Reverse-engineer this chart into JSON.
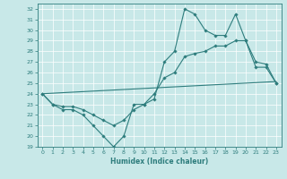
{
  "title": "",
  "xlabel": "Humidex (Indice chaleur)",
  "xlim": [
    -0.5,
    23.5
  ],
  "ylim": [
    19,
    32.5
  ],
  "yticks": [
    19,
    20,
    21,
    22,
    23,
    24,
    25,
    26,
    27,
    28,
    29,
    30,
    31,
    32
  ],
  "xticks": [
    0,
    1,
    2,
    3,
    4,
    5,
    6,
    7,
    8,
    9,
    10,
    11,
    12,
    13,
    14,
    15,
    16,
    17,
    18,
    19,
    20,
    21,
    22,
    23
  ],
  "bg_color": "#c8e8e8",
  "line_color": "#2e7d7d",
  "line1_x": [
    0,
    1,
    2,
    3,
    4,
    5,
    6,
    7,
    8,
    9,
    10,
    11,
    12,
    13,
    14,
    15,
    16,
    17,
    18,
    19,
    20,
    21,
    22,
    23
  ],
  "line1_y": [
    24,
    23,
    22.5,
    22.5,
    22,
    21,
    20,
    19,
    20,
    23,
    23,
    23.5,
    27,
    28,
    32,
    31.5,
    30,
    29.5,
    29.5,
    31.5,
    29,
    26.5,
    26.5,
    25
  ],
  "line2_x": [
    0,
    1,
    2,
    3,
    4,
    5,
    6,
    7,
    8,
    9,
    10,
    11,
    12,
    13,
    14,
    15,
    16,
    17,
    18,
    19,
    20,
    21,
    22,
    23
  ],
  "line2_y": [
    24,
    23,
    22.8,
    22.8,
    22.5,
    22,
    21.5,
    21,
    21.5,
    22.5,
    23,
    24,
    25.5,
    26,
    27.5,
    27.8,
    28,
    28.5,
    28.5,
    29,
    29,
    27,
    26.8,
    25
  ],
  "line3_x": [
    0,
    1,
    2,
    3,
    4,
    5,
    6,
    7,
    8,
    9,
    10,
    11,
    12,
    13,
    14,
    15,
    16,
    17,
    18,
    19,
    20,
    21,
    22,
    23
  ],
  "line3_y": [
    24,
    24.05,
    24.1,
    24.15,
    24.2,
    24.25,
    24.3,
    24.35,
    24.4,
    24.45,
    24.5,
    24.55,
    24.6,
    24.65,
    24.7,
    24.75,
    24.8,
    24.85,
    24.9,
    24.95,
    25.0,
    25.05,
    25.1,
    25.15
  ]
}
